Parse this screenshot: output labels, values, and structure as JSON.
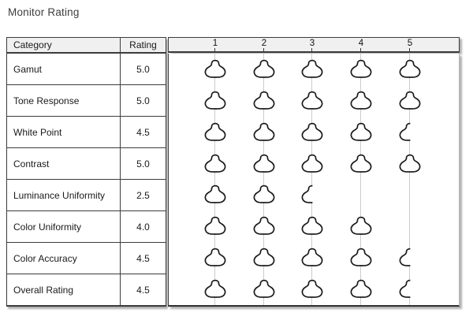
{
  "page": {
    "title": "Monitor Rating"
  },
  "colors": {
    "header_bg": "#f0f0f0",
    "border_dark": "#3c3c3c",
    "gridline": "#cccccc",
    "blob_stroke": "#1b1b1b",
    "shadow": "rgba(0,0,0,0.30)",
    "text": "#1a1a1a"
  },
  "table": {
    "header": {
      "category": "Category",
      "rating": "Rating"
    },
    "rows": [
      {
        "category": "Gamut",
        "rating": "5.0"
      },
      {
        "category": "Tone Response",
        "rating": "5.0"
      },
      {
        "category": "White Point",
        "rating": "4.5"
      },
      {
        "category": "Contrast",
        "rating": "5.0"
      },
      {
        "category": "Luminance Uniformity",
        "rating": "2.5"
      },
      {
        "category": "Color Uniformity",
        "rating": "4.0"
      },
      {
        "category": "Color Accuracy",
        "rating": "4.5"
      },
      {
        "category": "Overall Rating",
        "rating": "4.5"
      }
    ]
  },
  "chart_data": {
    "type": "bar",
    "subtype": "pictograph-rating",
    "glyph": "blob-rating-icon",
    "title": "Monitor Rating",
    "categories": [
      "Gamut",
      "Tone Response",
      "White Point",
      "Contrast",
      "Luminance Uniformity",
      "Color Uniformity",
      "Color Accuracy",
      "Overall Rating"
    ],
    "values": [
      5.0,
      5.0,
      4.5,
      5.0,
      2.5,
      4.0,
      4.5,
      4.5
    ],
    "xlabel": "",
    "ylabel": "",
    "xlim": [
      0,
      5
    ],
    "x_ticks": [
      "1",
      "2",
      "3",
      "4",
      "5"
    ],
    "half_step": 0.5,
    "legend": "none",
    "grid": "vertical-gridlines"
  }
}
